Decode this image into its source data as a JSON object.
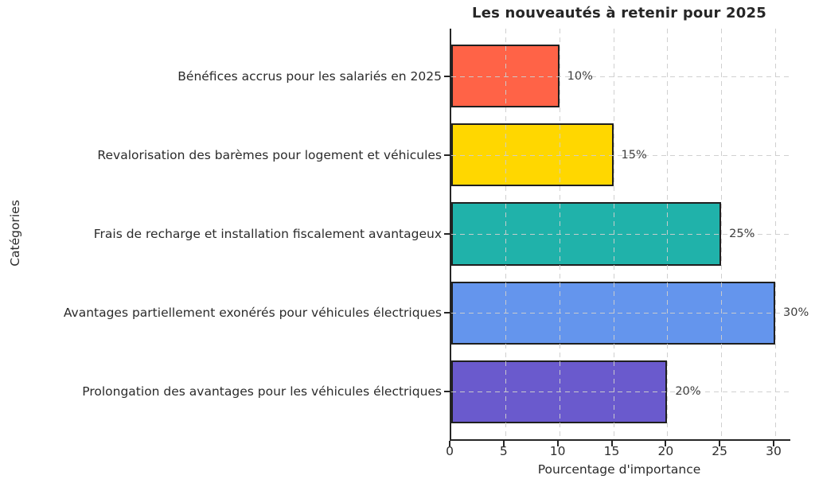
{
  "chart_data": {
    "type": "bar",
    "orientation": "horizontal",
    "title": "Les nouveautés à retenir pour 2025",
    "xlabel": "Pourcentage d'importance",
    "ylabel": "Catégories",
    "categories": [
      "Bénéfices accrus pour les salariés en 2025",
      "Revalorisation des barèmes pour logement et véhicules",
      "Frais de recharge et installation fiscalement avantageux",
      "Avantages partiellement exonérés pour véhicules électriques",
      "Prolongation des avantages pour les véhicules électriques"
    ],
    "values": [
      10,
      15,
      25,
      30,
      20
    ],
    "bar_labels": [
      "10%",
      "15%",
      "25%",
      "30%",
      "20%"
    ],
    "colors": [
      "#FF6347",
      "#FFD700",
      "#20B2AA",
      "#6495ED",
      "#6A5ACD"
    ],
    "bar_edge_color": "#1f1f1f",
    "xlim": [
      0,
      31.4
    ],
    "xticks": [
      0,
      5,
      10,
      15,
      20,
      25,
      30
    ],
    "grid": true,
    "grid_style": "dashed",
    "legend": "none"
  }
}
